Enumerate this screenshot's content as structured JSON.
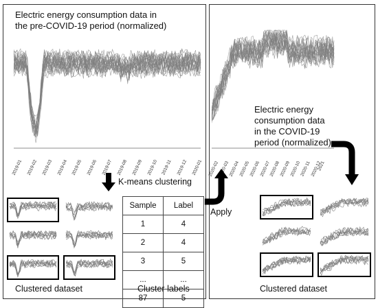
{
  "pre_covid": {
    "caption_line1": "Electric energy consumption data in",
    "caption_line2": "the pre-COVID-19 period (normalized)",
    "x_ticks": [
      "2019-01",
      "2019-02",
      "2019-03",
      "2019-04",
      "2019-05",
      "2019-06",
      "2019-07",
      "2019-08",
      "2019-09",
      "2019-10",
      "2019-11",
      "2019-12",
      "2020-01"
    ]
  },
  "covid": {
    "caption_line1": "Electric energy",
    "caption_line2": "consumption data",
    "caption_line3": "in the COVID-19",
    "caption_line4": "period (normalized)",
    "x_ticks": [
      "2020-02",
      "2020-03",
      "2020-04",
      "2020-05",
      "2020-06",
      "2020-07",
      "2020-08",
      "2020-09",
      "2020-10",
      "2020-11",
      "2020-12",
      "2021"
    ]
  },
  "steps": {
    "kmeans": "K-means clustering",
    "apply": "Apply"
  },
  "cluster_table": {
    "headers": [
      "Sample",
      "Label"
    ],
    "rows": [
      [
        "1",
        "4"
      ],
      [
        "2",
        "4"
      ],
      [
        "3",
        "5"
      ],
      [
        "...",
        "..."
      ],
      [
        "87",
        "5"
      ]
    ]
  },
  "captions": {
    "left_dataset": "Clustered dataset",
    "cluster_labels": "Cluster labels",
    "right_dataset": "Clustered dataset"
  },
  "colors": {
    "series": "#7f7f7f",
    "frame": "#222222",
    "arrow": "#000000"
  }
}
